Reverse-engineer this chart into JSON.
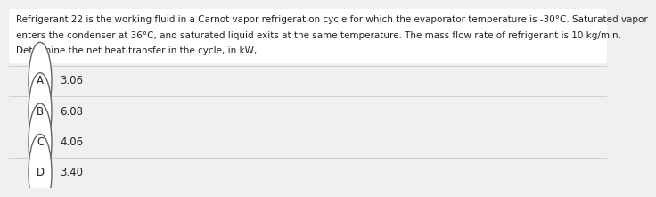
{
  "question_text_lines": [
    "Refrigerant 22 is the working fluid in a Carnot vapor refrigeration cycle for which the evaporator temperature is -30°C. Saturated vapor",
    "enters the condenser at 36°C, and saturated liquid exits at the same temperature. The mass flow rate of refrigerant is 10 kg/min.",
    "Determine the net heat transfer in the cycle, in kW,"
  ],
  "options": [
    {
      "label": "A",
      "value": "3.06"
    },
    {
      "label": "B",
      "value": "6.08"
    },
    {
      "label": "C",
      "value": "4.06"
    },
    {
      "label": "D",
      "value": "3.40"
    }
  ],
  "background_color": "#f0f0f0",
  "question_bg": "#ffffff",
  "option_bg": "#f0f0f0",
  "text_color": "#222222",
  "circle_edge_color": "#666666",
  "font_size_question": 7.5,
  "font_size_option": 8.5,
  "divider_color": "#cccccc"
}
